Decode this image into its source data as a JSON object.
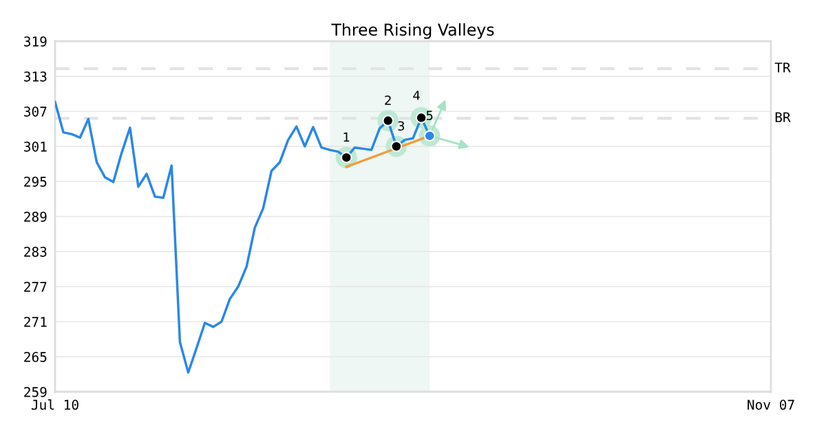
{
  "chart_data": {
    "type": "line",
    "title": "Three Rising Valleys",
    "categories": [
      "Jul 10",
      null,
      null,
      null,
      null,
      null,
      null,
      null,
      null,
      null,
      null,
      null,
      null,
      null,
      null,
      null,
      null,
      null,
      null,
      null,
      null,
      null,
      null,
      null,
      null,
      null,
      null,
      null,
      null,
      null,
      null,
      null,
      null,
      null,
      null,
      null,
      null,
      null,
      null,
      null,
      null,
      null,
      null,
      null,
      null,
      null,
      null,
      null,
      null,
      null,
      null,
      null,
      null,
      null,
      null,
      null,
      null,
      null,
      null,
      null,
      null,
      null,
      null,
      null,
      null,
      null,
      null,
      null,
      null,
      null,
      null,
      null,
      null,
      null,
      null,
      null,
      null,
      null,
      null,
      null,
      null,
      null,
      null,
      null,
      null,
      null,
      "Nov 07"
    ],
    "ylim": [
      259,
      319
    ],
    "yticks": [
      259,
      265,
      271,
      277,
      283,
      289,
      295,
      301,
      307,
      313,
      319
    ],
    "grid": "y",
    "legend": false,
    "series": [
      {
        "color": "#2a87e8",
        "values": [
          308.6,
          303.4,
          303.1,
          302.5,
          305.7,
          298.3,
          295.7,
          294.9,
          299.9,
          304.2,
          294.1,
          296.3,
          292.4,
          292.2,
          297.7,
          267.5,
          262.3,
          266.5,
          270.8,
          270.1,
          271.0,
          274.9,
          277.0,
          280.4,
          287.1,
          290.4,
          296.8,
          298.3,
          302.1,
          304.4,
          301.0,
          304.3,
          300.8,
          300.4,
          300.1,
          299.1,
          300.8,
          300.6,
          300.4,
          304.1,
          305.4,
          301.0,
          302.1,
          302.4,
          305.9,
          302.8,
          null,
          null,
          null,
          null,
          null,
          null,
          null,
          null,
          null,
          null,
          null,
          null,
          null,
          null,
          null,
          null,
          null,
          null,
          null,
          null,
          null,
          null,
          null,
          null,
          null,
          null,
          null,
          null,
          null,
          null,
          null,
          null,
          null,
          null,
          null,
          null,
          null,
          null,
          null,
          null,
          null
        ]
      },
      {
        "type": "line",
        "color": "#f39c3c",
        "values": [
          null,
          null,
          null,
          null,
          null,
          null,
          null,
          null,
          null,
          null,
          null,
          null,
          null,
          null,
          null,
          null,
          null,
          null,
          null,
          null,
          null,
          null,
          null,
          null,
          null,
          null,
          null,
          null,
          null,
          null,
          null,
          null,
          null,
          null,
          null,
          297.5,
          null,
          null,
          null,
          null,
          null,
          null,
          null,
          null,
          null,
          302.8,
          null,
          null,
          null,
          null,
          null,
          null,
          null,
          null,
          null,
          null,
          null,
          null,
          null,
          null,
          null,
          null,
          null,
          null,
          null,
          null,
          null,
          null,
          null,
          null,
          null,
          null,
          null,
          null,
          null,
          null,
          null,
          null,
          null,
          null,
          null,
          null,
          null,
          null,
          null,
          null,
          null
        ]
      },
      {
        "type": "scatter",
        "values": [
          null,
          null,
          null,
          null,
          null,
          null,
          null,
          null,
          null,
          null,
          null,
          null,
          null,
          null,
          null,
          null,
          null,
          null,
          null,
          null,
          null,
          null,
          null,
          null,
          null,
          null,
          null,
          null,
          null,
          null,
          null,
          null,
          null,
          null,
          null,
          299.1,
          null,
          null,
          null,
          null,
          305.4,
          301.0,
          null,
          null,
          305.9,
          302.8,
          null,
          null,
          null,
          null,
          null,
          null,
          null,
          null,
          null,
          null,
          null,
          null,
          null,
          null,
          null,
          null,
          null,
          null,
          null,
          null,
          null,
          null,
          null,
          null,
          null,
          null,
          null,
          null,
          null,
          null,
          null,
          null,
          null,
          null,
          null,
          null,
          null,
          null,
          null,
          null,
          null
        ],
        "colors": [
          "#000000",
          "#000000",
          "#000000",
          "#000000",
          "#000000",
          "#000000",
          "#000000",
          "#000000",
          "#000000",
          "#000000",
          "#000000",
          "#000000",
          "#000000",
          "#000000",
          "#000000",
          "#000000",
          "#000000",
          "#000000",
          "#000000",
          "#000000",
          "#000000",
          "#000000",
          "#000000",
          "#000000",
          "#000000",
          "#000000",
          "#000000",
          "#000000",
          "#000000",
          "#000000",
          "#000000",
          "#000000",
          "#000000",
          "#000000",
          "#000000",
          "#000000",
          "#000000",
          "#000000",
          "#000000",
          "#000000",
          "#000000",
          "#000000",
          "#000000",
          "#000000",
          "#000000",
          "#2a87e8",
          "#000000",
          "#000000",
          "#000000",
          "#000000",
          "#000000",
          "#000000",
          "#000000",
          "#000000",
          "#000000",
          "#000000",
          "#000000",
          "#000000",
          "#000000",
          "#000000",
          "#000000",
          "#000000",
          "#000000",
          "#000000",
          "#000000",
          "#000000",
          "#000000",
          "#000000",
          "#000000",
          "#000000",
          "#000000",
          "#000000",
          "#000000",
          "#000000",
          "#000000",
          "#000000",
          "#000000",
          "#000000",
          "#000000",
          "#000000",
          "#000000",
          "#000000",
          "#000000",
          "#000000",
          "#000000",
          "#000000",
          "#000000"
        ]
      }
    ],
    "ref_lines": [
      {
        "axis": "y",
        "value": 314.3,
        "label": "TR",
        "color": "#e3e3e3",
        "line_style": "dashed"
      },
      {
        "axis": "y",
        "value": 305.8,
        "label": "BR",
        "color": "#e3e3e3",
        "line_style": "dashed"
      }
    ],
    "annotations": [
      "1",
      "2",
      "3",
      "4",
      "5"
    ]
  }
}
